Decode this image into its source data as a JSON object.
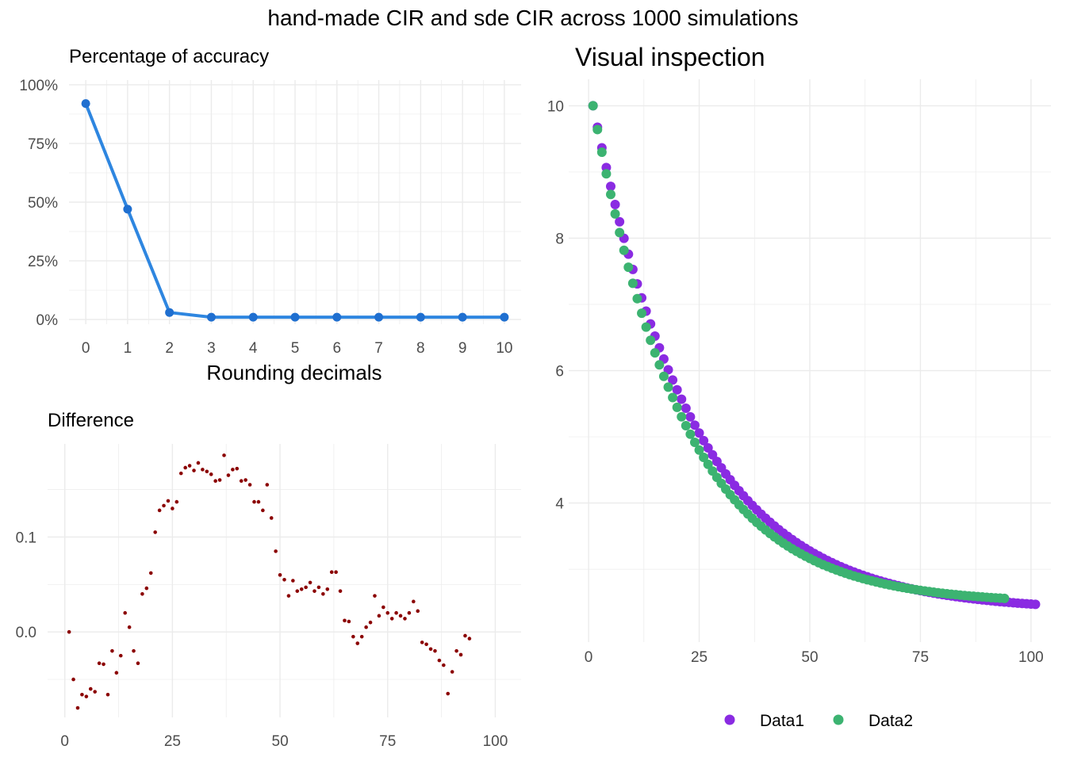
{
  "title": "hand-made CIR and sde CIR across 1000 simulations",
  "colors": {
    "accuracy_line": "#2e86e0",
    "accuracy_point": "#1f6fd0",
    "difference_point": "#8b0000",
    "data1": "#8a2be2",
    "data2": "#3cb371",
    "grid": "#ebebeb"
  },
  "chart_data": [
    {
      "id": "accuracy",
      "type": "line",
      "title": "Percentage of accuracy",
      "xlabel": "Rounding decimals",
      "ylabel": "",
      "x": [
        0,
        1,
        2,
        3,
        4,
        5,
        6,
        7,
        8,
        9,
        10
      ],
      "values": [
        0.92,
        0.47,
        0.03,
        0.01,
        0.01,
        0.01,
        0.01,
        0.01,
        0.01,
        0.01,
        0.01
      ],
      "xlim": [
        -0.4,
        10.4
      ],
      "ylim": [
        -0.02,
        1.02
      ],
      "xticks": [
        0,
        1,
        2,
        3,
        4,
        5,
        6,
        7,
        8,
        9,
        10
      ],
      "xtick_labels": [
        "0",
        "1",
        "2",
        "3",
        "4",
        "5",
        "6",
        "7",
        "8",
        "9",
        "10"
      ],
      "yticks": [
        0,
        0.25,
        0.5,
        0.75,
        1
      ],
      "ytick_labels": [
        "0%",
        "25%",
        "50%",
        "75%",
        "100%"
      ],
      "grid": true
    },
    {
      "id": "difference",
      "type": "scatter",
      "title": "Difference",
      "xlabel": "",
      "ylabel": "",
      "x": [
        1,
        2,
        3,
        4,
        5,
        6,
        7,
        8,
        9,
        10,
        11,
        12,
        13,
        14,
        15,
        16,
        17,
        18,
        19,
        20,
        21,
        22,
        23,
        24,
        25,
        26,
        27,
        28,
        29,
        30,
        31,
        32,
        33,
        34,
        35,
        36,
        37,
        38,
        39,
        40,
        41,
        42,
        43,
        44,
        45,
        46,
        47,
        48,
        49,
        50,
        51,
        52,
        53,
        54,
        55,
        56,
        57,
        58,
        59,
        60,
        61,
        62,
        63,
        64,
        65,
        66,
        67,
        68,
        69,
        70,
        71,
        72,
        73,
        74,
        75,
        76,
        77,
        78,
        79,
        80,
        81,
        82,
        83,
        84,
        85,
        86,
        87,
        88,
        89,
        90,
        91,
        92,
        93,
        94
      ],
      "values": [
        0.0,
        -0.05,
        -0.08,
        -0.066,
        -0.068,
        -0.06,
        -0.063,
        -0.033,
        -0.034,
        -0.066,
        -0.02,
        -0.043,
        -0.025,
        0.02,
        0.005,
        -0.02,
        -0.033,
        0.04,
        0.046,
        0.062,
        0.105,
        0.128,
        0.133,
        0.138,
        0.13,
        0.137,
        0.167,
        0.173,
        0.175,
        0.17,
        0.178,
        0.171,
        0.169,
        0.166,
        0.159,
        0.16,
        0.186,
        0.165,
        0.171,
        0.172,
        0.159,
        0.16,
        0.155,
        0.137,
        0.137,
        0.128,
        0.155,
        0.12,
        0.085,
        0.06,
        0.055,
        0.038,
        0.054,
        0.043,
        0.045,
        0.047,
        0.052,
        0.043,
        0.047,
        0.04,
        0.045,
        0.063,
        0.063,
        0.043,
        0.012,
        0.011,
        -0.005,
        -0.012,
        -0.005,
        0.005,
        0.01,
        0.038,
        0.017,
        0.026,
        0.02,
        0.014,
        0.02,
        0.017,
        0.014,
        0.02,
        0.032,
        0.022,
        -0.011,
        -0.013,
        -0.018,
        -0.02,
        -0.03,
        -0.035,
        -0.065,
        -0.042,
        -0.02,
        -0.024,
        -0.004,
        -0.007
      ],
      "xlim": [
        -4,
        106
      ],
      "ylim": [
        -0.09,
        0.198
      ],
      "xticks": [
        0,
        25,
        50,
        75,
        100
      ],
      "yticks": [
        0,
        0.1
      ],
      "ytick_labels": [
        "0.0",
        "0.1"
      ],
      "grid": true
    },
    {
      "id": "visual",
      "type": "scatter",
      "title": "Visual inspection",
      "xlabel": "",
      "ylabel": "",
      "x_range": [
        1,
        101
      ],
      "series": [
        {
          "name": "Data1",
          "x_range": [
            1,
            101
          ],
          "start": 10.0,
          "end": 2.47,
          "decay": 0.0435,
          "color_key": "data1"
        },
        {
          "name": "Data2",
          "x_range": [
            1,
            94
          ],
          "start": 10.0,
          "end": 2.56,
          "decay": 0.049,
          "color_key": "data2"
        }
      ],
      "xlim": [
        -4.5,
        104.5
      ],
      "ylim": [
        1.9,
        10.4
      ],
      "xticks": [
        0,
        25,
        50,
        75,
        100
      ],
      "yticks": [
        4,
        6,
        8,
        10
      ],
      "legend": "bottom",
      "grid": true
    }
  ]
}
